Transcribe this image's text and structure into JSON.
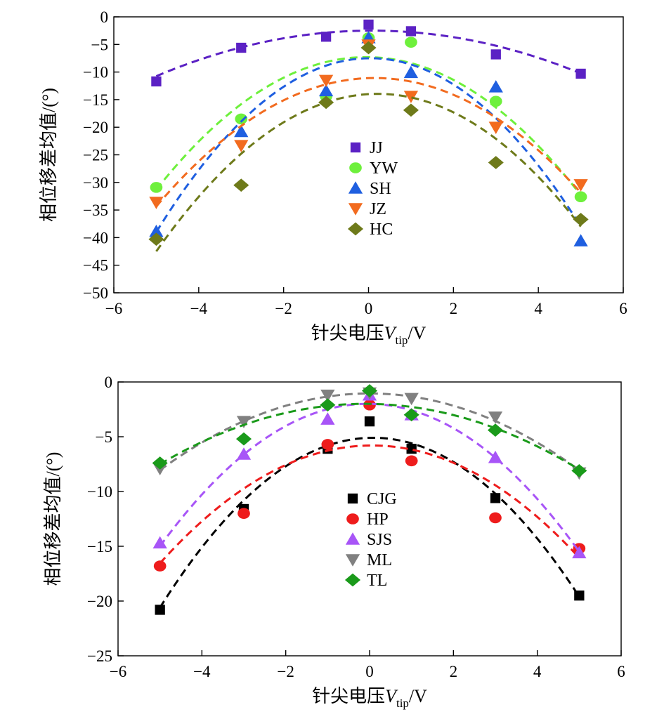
{
  "chart_data": [
    {
      "type": "scatter",
      "title": "",
      "xlabel_main": "针尖电压",
      "xlabel_var": "V",
      "xlabel_sub": "tip",
      "xlabel_unit": "/V",
      "ylabel": "相位移差均值/(°)",
      "xlim": [
        -6,
        6
      ],
      "ylim": [
        -50,
        0
      ],
      "xticks": [
        -6,
        -4,
        -2,
        0,
        2,
        4,
        6
      ],
      "xtick_labels": [
        "−6",
        "−4",
        "−2",
        "0",
        "2",
        "4",
        "6"
      ],
      "yticks": [
        0,
        -5,
        -10,
        -15,
        -20,
        -25,
        -30,
        -35,
        -40,
        -45,
        -50
      ],
      "ytick_labels": [
        "0",
        "−5",
        "−10",
        "−15",
        "−20",
        "−25",
        "−30",
        "−35",
        "−40",
        "−45",
        "−50"
      ],
      "grid": false,
      "legend_position": "center",
      "x": [
        -5,
        -3,
        -1,
        0,
        1,
        3,
        5
      ],
      "series": [
        {
          "name": "JJ",
          "marker": "square",
          "color": "#5b21c4",
          "values": [
            -11.7,
            -5.6,
            -3.6,
            -1.4,
            -2.6,
            -6.8,
            -10.3
          ],
          "fit": [
            -0.32,
            0.05,
            -2.5
          ]
        },
        {
          "name": "YW",
          "marker": "circle",
          "color": "#6ef03c",
          "values": [
            -30.9,
            -18.5,
            -14.4,
            -3.8,
            -4.6,
            -15.3,
            -32.6
          ],
          "fit": [
            -0.98,
            -0.1,
            -7.3
          ]
        },
        {
          "name": "SH",
          "marker": "triangle-up",
          "color": "#1f5fe0",
          "values": [
            -38.9,
            -20.8,
            -13.4,
            -3.8,
            -10.1,
            -12.7,
            -40.6
          ],
          "fit": [
            -1.24,
            0.1,
            -7.5
          ]
        },
        {
          "name": "JZ",
          "marker": "triangle-down",
          "color": "#f26b1f",
          "values": [
            -33.6,
            -23.3,
            -11.5,
            -5.1,
            -14.4,
            -20.0,
            -30.4
          ],
          "fit": [
            -0.88,
            0.25,
            -11.1
          ]
        },
        {
          "name": "HC",
          "marker": "diamond",
          "color": "#6e7a1a",
          "values": [
            -40.3,
            -30.5,
            -15.5,
            -5.6,
            -16.9,
            -26.4,
            -36.7
          ],
          "fit": [
            -1.05,
            0.45,
            -14.0
          ]
        }
      ]
    },
    {
      "type": "scatter",
      "title": "",
      "xlabel_main": "针尖电压",
      "xlabel_var": "V",
      "xlabel_sub": "tip",
      "xlabel_unit": "/V",
      "ylabel": "相位移差均值/(°)",
      "xlim": [
        -6,
        6
      ],
      "ylim": [
        -25,
        0
      ],
      "xticks": [
        -6,
        -4,
        -2,
        0,
        2,
        4,
        6
      ],
      "xtick_labels": [
        "−6",
        "−4",
        "−2",
        "0",
        "2",
        "4",
        "6"
      ],
      "yticks": [
        0,
        -5,
        -10,
        -15,
        -20,
        -25
      ],
      "ytick_labels": [
        "0",
        "−5",
        "−10",
        "−15",
        "−20",
        "−25"
      ],
      "grid": false,
      "legend_position": "center",
      "x": [
        -5,
        -3,
        -1,
        0,
        1,
        3,
        5
      ],
      "series": [
        {
          "name": "CJG",
          "marker": "square",
          "color": "#000000",
          "values": [
            -20.8,
            -11.6,
            -6.1,
            -3.6,
            -6.1,
            -10.6,
            -19.5
          ],
          "fit": [
            -0.6,
            0.1,
            -5.1
          ]
        },
        {
          "name": "HP",
          "marker": "circle",
          "color": "#ee1c1c",
          "values": [
            -16.8,
            -12.0,
            -5.7,
            -2.1,
            -7.2,
            -12.4,
            -15.2
          ],
          "fit": [
            -0.42,
            0.05,
            -5.8
          ]
        },
        {
          "name": "SJS",
          "marker": "triangle-up",
          "color": "#a855f7",
          "values": [
            -14.7,
            -6.6,
            -3.4,
            -1.2,
            -3.0,
            -6.9,
            -15.6
          ],
          "fit": [
            -0.53,
            -0.05,
            -2.0
          ]
        },
        {
          "name": "ML",
          "marker": "triangle-down",
          "color": "#808080",
          "values": [
            -7.9,
            -3.6,
            -1.2,
            -1.0,
            -1.5,
            -3.2,
            -8.3
          ],
          "fit": [
            -0.28,
            0.0,
            -1.05
          ]
        },
        {
          "name": "TL",
          "marker": "diamond",
          "color": "#1a9a1a",
          "values": [
            -7.4,
            -5.2,
            -2.1,
            -0.8,
            -3.0,
            -4.4,
            -8.1
          ],
          "fit": [
            -0.23,
            -0.05,
            -2.0
          ]
        }
      ]
    }
  ]
}
